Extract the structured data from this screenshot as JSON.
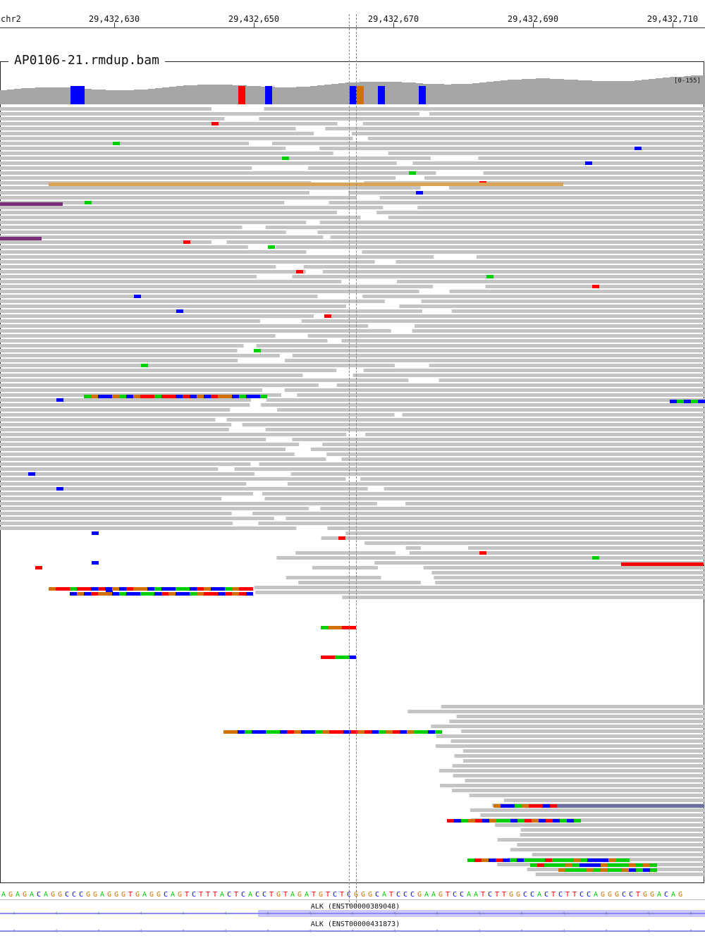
{
  "ruler": {
    "chromosome": "chr2",
    "ticks": [
      "29,432,630",
      "29,432,650",
      "29,432,670",
      "29,432,690",
      "29,432,710"
    ]
  },
  "track": {
    "title": "AP0106-21.rmdup.bam",
    "coverage_range": "[0-155]"
  },
  "reference": {
    "sequence": "AGAGACAGGCCCGGAGGGTGAGGCAGTCTTTACTCACCTGTAGATGTCTCGGGCATCCCGAAGTCCAATCTTGGCCACTCTTCCAGGGCCTGGACAG"
  },
  "genes": [
    {
      "label": "ALK (ENST00000389048)",
      "has_exon": true
    },
    {
      "label": "ALK (ENST00000431873)",
      "has_exon": false
    }
  ],
  "colors": {
    "read": "#c4c4c4",
    "coverage": "#a6a6a6",
    "A": "#00d000",
    "C": "#0000ff",
    "G": "#d17105",
    "T": "#ff0000",
    "insert_orange": "#d9a35a",
    "discordant_purple": "#7a2e7a",
    "discordant_slate": "#6a6fa0"
  }
}
